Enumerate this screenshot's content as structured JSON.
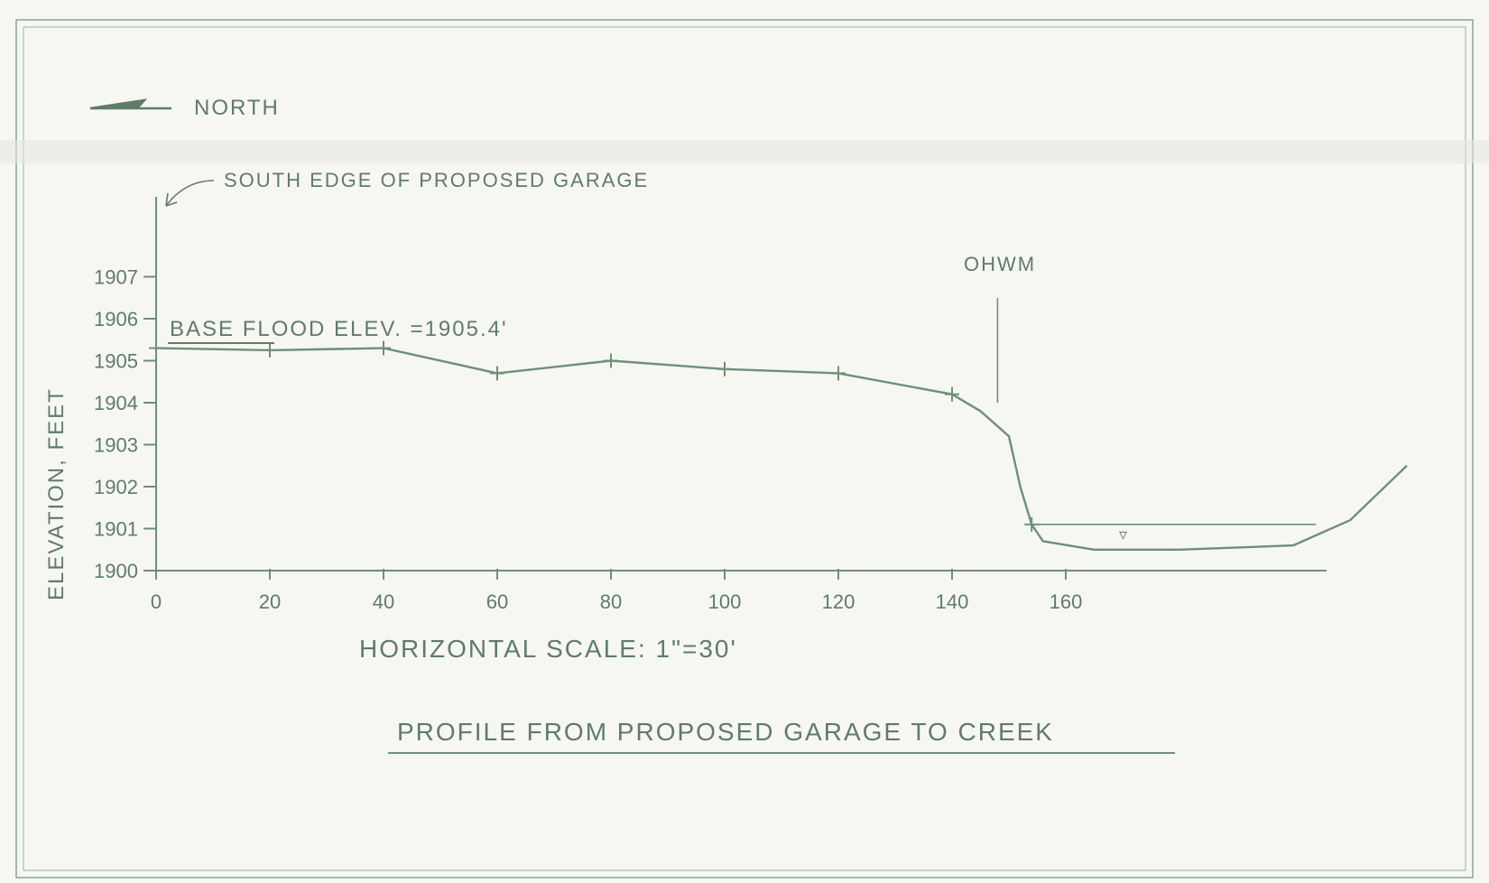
{
  "north_label": "NORTH",
  "garage_note": "SOUTH EDGE OF PROPOSED GARAGE",
  "ohwm_label": "OHWM",
  "bfe_label": "BASE FLOOD ELEV. =1905.4'",
  "ylabel": "ELEVATION, FEET",
  "xlabel": "HORIZONTAL SCALE: 1\"=30'",
  "title": "PROFILE FROM PROPOSED GARAGE TO CREEK",
  "water_symbol": "▿",
  "colors": {
    "ink": "#6f8f78",
    "paper": "#f7f7f2",
    "line": "#7e9c86"
  },
  "chart_data": {
    "type": "line",
    "title": "PROFILE FROM PROPOSED GARAGE TO CREEK",
    "xlabel": "HORIZONTAL SCALE: 1\"=30'",
    "ylabel": "ELEVATION, FEET",
    "xlim": [
      0,
      208
    ],
    "ylim": [
      1900,
      1908
    ],
    "x_ticks": [
      "0",
      "20",
      "40",
      "60",
      "80",
      "100",
      "120",
      "140",
      "160"
    ],
    "y_ticks": [
      "1900",
      "1901",
      "1902",
      "1903",
      "1904",
      "1905",
      "1906",
      "1907"
    ],
    "grid": false,
    "series": [
      {
        "x": [
          0,
          20,
          40,
          60,
          80,
          100,
          120,
          140,
          145,
          150,
          152,
          154,
          156,
          165,
          180,
          200,
          210,
          220
        ],
        "y": [
          1905.3,
          1905.25,
          1905.3,
          1904.7,
          1905.0,
          1904.8,
          1904.7,
          1904.2,
          1903.8,
          1903.2,
          1902.0,
          1901.1,
          1900.7,
          1900.5,
          1900.5,
          1900.6,
          1901.2,
          1902.5
        ]
      }
    ],
    "survey_points": {
      "x": [
        0,
        20,
        40,
        60,
        80,
        100,
        120,
        140,
        154
      ],
      "y": [
        1905.3,
        1905.25,
        1905.3,
        1904.7,
        1905.0,
        1904.8,
        1904.7,
        1904.2,
        1901.1
      ]
    },
    "reference_lines": {
      "base_flood_elevation": 1905.4,
      "ohwm_x": 148,
      "water_surface": 1901.1
    }
  }
}
